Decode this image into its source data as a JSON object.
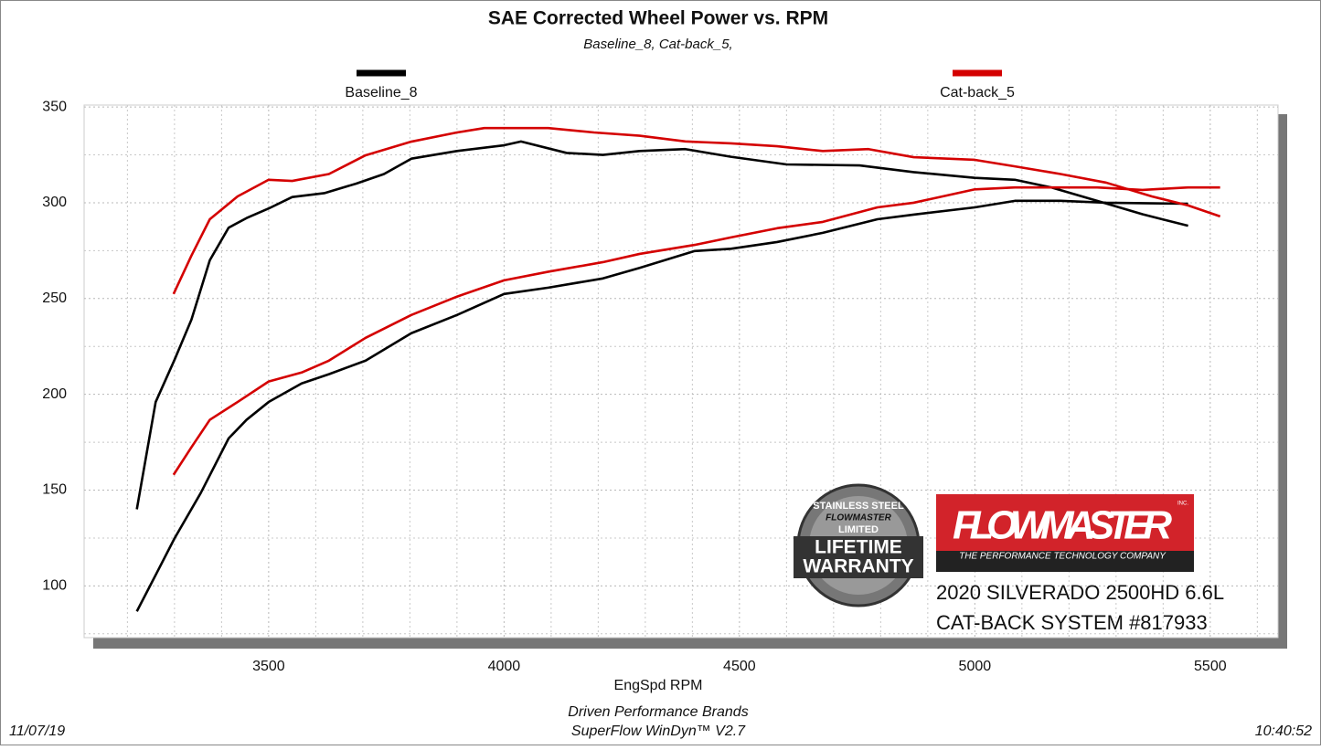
{
  "chart_data": {
    "type": "line",
    "title": "SAE Corrected Wheel Power vs. RPM",
    "subtitle": "Baseline_8, Cat-back_5,",
    "x_label": "EngSpd  RPM",
    "xlim": [
      3108,
      5644
    ],
    "ylim": [
      73,
      351
    ],
    "xticks": [
      3500,
      4000,
      4500,
      5000,
      5500
    ],
    "yticks": [
      100,
      150,
      200,
      250,
      300,
      350
    ],
    "grid": true,
    "series": [
      {
        "name": "Baseline_8",
        "color": "#000000",
        "curves": [
          {
            "x": [
              3220,
              3260,
              3300,
              3336,
              3375,
              3415,
              3453,
              3500,
              3550,
              3618,
              3686,
              3745,
              3803,
              3900,
              4000,
              4036,
              4133,
              4210,
              4288,
              4385,
              4482,
              4600,
              4755,
              4870,
              5000,
              5085,
              5162,
              5260,
              5356,
              5453
            ],
            "values": [
              140,
              196,
              218,
              239,
              270,
              287,
              292,
              297,
              303,
              305,
              310,
              315,
              323,
              327,
              330,
              332,
              326,
              325,
              327,
              328,
              324,
              320,
              319.5,
              316,
              313,
              312,
              308,
              301,
              294,
              288
            ]
          },
          {
            "x": [
              3220,
              3260,
              3300,
              3356,
              3415,
              3453,
              3500,
              3570,
              3628,
              3706,
              3803,
              3900,
              4000,
              4094,
              4210,
              4288,
              4405,
              4482,
              4580,
              4677,
              4793,
              4870,
              5000,
              5085,
              5182,
              5279,
              5453
            ],
            "values": [
              86.7,
              105.7,
              124.8,
              148.6,
              177,
              186.7,
              196,
              205.7,
              210.5,
              217.6,
              231.9,
              241.4,
              252.4,
              255.7,
              260.5,
              266,
              274.8,
              276,
              279.5,
              284.3,
              291.4,
              293.8,
              297.6,
              301,
              301,
              300,
              299.5
            ]
          }
        ]
      },
      {
        "name": "Cat-back_5",
        "color": "#d40000",
        "curves": [
          {
            "x": [
              3298,
              3336,
              3375,
              3434,
              3500,
              3550,
              3628,
              3706,
              3803,
              3900,
              3958,
              4094,
              4191,
              4288,
              4385,
              4482,
              4580,
              4677,
              4774,
              4870,
              5000,
              5085,
              5182,
              5279,
              5376,
              5453,
              5521
            ],
            "values": [
              252.4,
              272.4,
              291.4,
              303.3,
              312,
              311.4,
              315,
              324.8,
              331.9,
              336.7,
              339,
              339,
              336.7,
              335,
              332,
              331,
              329.5,
              327,
              328,
              323.8,
              322.4,
              319,
              315,
              310.5,
              303.3,
              298.6,
              292.9
            ]
          },
          {
            "x": [
              3298,
              3336,
              3375,
              3434,
              3500,
              3570,
              3628,
              3706,
              3803,
              3900,
              4000,
              4094,
              4210,
              4288,
              4405,
              4482,
              4580,
              4677,
              4793,
              4870,
              5000,
              5085,
              5260,
              5356,
              5453,
              5521
            ],
            "values": [
              158,
              172.4,
              186.7,
              196,
              206.7,
              211.4,
              217.6,
              229.5,
              241.4,
              251,
              259.5,
              264,
              269,
              273.3,
              278,
              281.9,
              286.7,
              290,
              297.6,
              300,
              307,
              308,
              308,
              306.7,
              308,
              308
            ]
          }
        ]
      }
    ],
    "footer": {
      "left": "11/07/19",
      "center": [
        "Driven Performance Brands",
        "SuperFlow WinDyn™  V2.7"
      ],
      "right": "10:40:52"
    }
  },
  "logos": {
    "warranty": [
      "STAINLESS STEEL",
      "FLOWMASTER",
      "LIMITED",
      "LIFETIME",
      "WARRANTY"
    ],
    "brand": "FLOWMASTER",
    "brand_mark": "INC.",
    "tagline": "THE PERFORMANCE TECHNOLOGY COMPANY",
    "caption": [
      "2020 SILVERADO 2500HD 6.6L",
      "CAT-BACK SYSTEM #817933"
    ]
  }
}
